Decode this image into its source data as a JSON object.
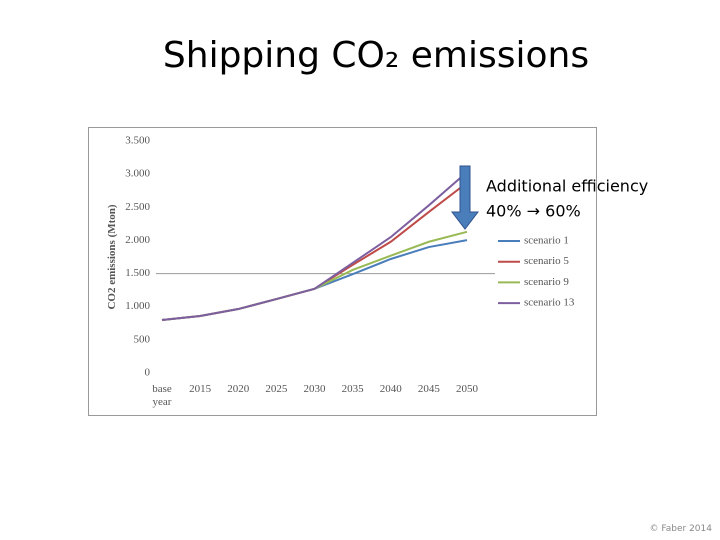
{
  "slide_title": "Shipping CO₂ emissions",
  "footer": "© Faber 2014",
  "chart_data": {
    "type": "line",
    "ylabel": "CO2 emissions (Mton)",
    "categories": [
      "base year",
      "2015",
      "2020",
      "2025",
      "2030",
      "2035",
      "2040",
      "2045",
      "2050"
    ],
    "ylim": [
      0,
      3500
    ],
    "yticks": [
      0,
      500,
      {
        "value": 1000,
        "label": "1.000"
      },
      {
        "value": 1500,
        "label": "1.500"
      },
      {
        "value": 2000,
        "label": "2.000"
      },
      {
        "value": 2500,
        "label": "2.500"
      },
      {
        "value": 3000,
        "label": "3.000"
      },
      {
        "value": 3500,
        "label": "3.500"
      }
    ],
    "reference_line": 1500,
    "series": [
      {
        "name": "scenario 1",
        "color": "#4a7ebb",
        "values": [
          800,
          860,
          965,
          1115,
          1270,
          1490,
          1720,
          1900,
          2005
        ]
      },
      {
        "name": "scenario 5",
        "color": "#be4b48",
        "values": [
          800,
          860,
          965,
          1115,
          1270,
          1630,
          1980,
          2430,
          2870
        ]
      },
      {
        "name": "scenario 9",
        "color": "#98b954",
        "values": [
          800,
          860,
          965,
          1115,
          1270,
          1555,
          1770,
          1980,
          2130
        ]
      },
      {
        "name": "scenario 13",
        "color": "#7d5fa0",
        "values": [
          800,
          860,
          965,
          1115,
          1270,
          1660,
          2050,
          2530,
          3030
        ]
      }
    ],
    "annotation": [
      "Additional efficiency",
      "40% → 60%"
    ]
  }
}
